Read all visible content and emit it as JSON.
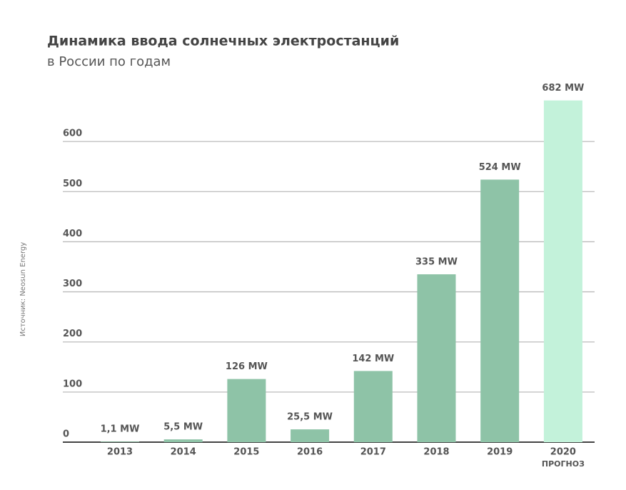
{
  "chart_data": {
    "type": "bar",
    "title": "Динамика ввода солнечных электростанций",
    "subtitle": "в России по годам",
    "source": "Источник: Neosun Energy",
    "categories": [
      "2013",
      "2014",
      "2015",
      "2016",
      "2017",
      "2018",
      "2019",
      "2020"
    ],
    "forecast_label": "ПРОГНОЗ",
    "values": [
      1.1,
      5.5,
      126,
      25.5,
      142,
      335,
      524,
      682
    ],
    "value_labels": [
      "1,1 MW",
      "5,5 MW",
      "126 MW",
      "25,5 MW",
      "142 MW",
      "335 MW",
      "524 MW",
      "682 MW"
    ],
    "colors": [
      "#8ec3a7",
      "#8ec3a7",
      "#8ec3a7",
      "#8ec3a7",
      "#8ec3a7",
      "#8ec3a7",
      "#8ec3a7",
      "#c3f2da"
    ],
    "ylim": [
      0,
      700
    ],
    "yticks": [
      0,
      100,
      200,
      300,
      400,
      500,
      600
    ],
    "grid": true
  }
}
